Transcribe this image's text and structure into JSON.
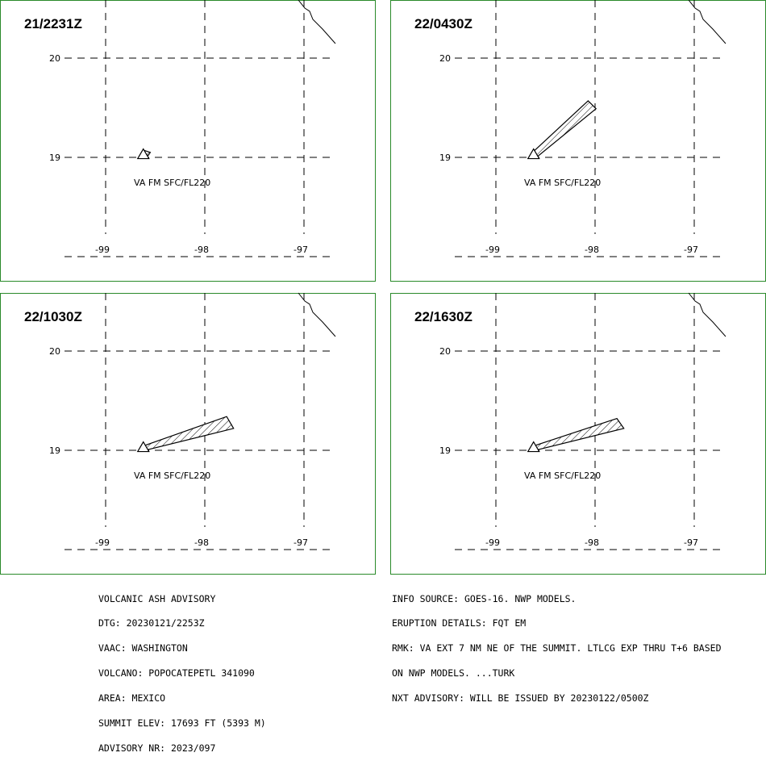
{
  "panels": [
    {
      "title": "21/2231Z",
      "label": "VA FM SFC/FL220",
      "ash": [
        [
          -98.61,
          19.07
        ],
        [
          -98.55,
          19.05
        ],
        [
          -98.57,
          19.02
        ],
        [
          -98.63,
          19.03
        ]
      ]
    },
    {
      "title": "22/0430Z",
      "label": "VA FM SFC/FL220",
      "ash": [
        [
          -98.63,
          19.05
        ],
        [
          -98.07,
          19.57
        ],
        [
          -97.99,
          19.49
        ],
        [
          -98.58,
          19.01
        ]
      ]
    },
    {
      "title": "22/1030Z",
      "label": "VA FM SFC/FL220",
      "ash": [
        [
          -98.63,
          19.04
        ],
        [
          -97.78,
          19.34
        ],
        [
          -97.71,
          19.22
        ],
        [
          -98.6,
          19.0
        ]
      ]
    },
    {
      "title": "22/1630Z",
      "label": "VA FM SFC/FL220",
      "ash": [
        [
          -98.63,
          19.04
        ],
        [
          -97.78,
          19.32
        ],
        [
          -97.71,
          19.22
        ],
        [
          -98.6,
          19.0
        ]
      ]
    }
  ],
  "axes": {
    "lon_ticks": [
      "-99",
      "-98",
      "-97"
    ],
    "lat_ticks": [
      "20",
      "19"
    ]
  },
  "volcano_position": {
    "lon": -98.62,
    "lat": 19.02
  },
  "colors": {
    "frame": "#2a8a2a",
    "lines": "#000000"
  },
  "advisory_left": [
    "VOLCANIC ASH ADVISORY",
    "DTG: 20230121/2253Z",
    "VAAC: WASHINGTON",
    "VOLCANO: POPOCATEPETL 341090",
    "AREA: MEXICO",
    "SUMMIT ELEV: 17693 FT (5393 M)",
    "ADVISORY NR: 2023/097"
  ],
  "advisory_right": [
    "INFO SOURCE: GOES-16. NWP MODELS.",
    "ERUPTION DETAILS: FQT EM",
    "RMK: VA EXT 7 NM NE OF THE SUMMIT. LTLCG EXP THRU T+6 BASED",
    "ON NWP MODELS. ...TURK",
    "NXT ADVISORY: WILL BE ISSUED BY 20230122/0500Z"
  ]
}
